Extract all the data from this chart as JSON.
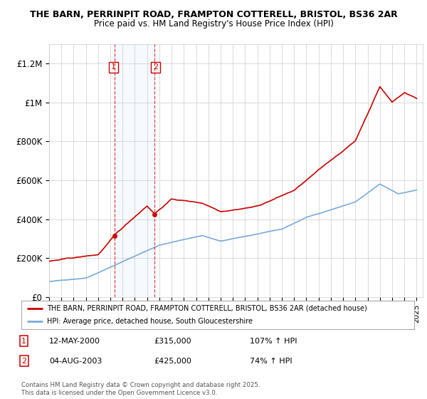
{
  "title_line1": "THE BARN, PERRINPIT ROAD, FRAMPTON COTTERELL, BRISTOL, BS36 2AR",
  "title_line2": "Price paid vs. HM Land Registry's House Price Index (HPI)",
  "hpi_color": "#7aaadc",
  "property_color": "#cc0000",
  "marker_color": "#cc0000",
  "background_color": "#ffffff",
  "grid_color": "#cccccc",
  "ylim": [
    0,
    1300000
  ],
  "yticks": [
    0,
    200000,
    400000,
    600000,
    800000,
    1000000,
    1200000
  ],
  "ytick_labels": [
    "£0",
    "£200K",
    "£400K",
    "£600K",
    "£800K",
    "£1M",
    "£1.2M"
  ],
  "purchase1_date": 2000.37,
  "purchase1_price": 315000,
  "purchase2_date": 2003.59,
  "purchase2_price": 425000,
  "legend_line1": "THE BARN, PERRINPIT ROAD, FRAMPTON COTTERELL, BRISTOL, BS36 2AR (detached house)",
  "legend_line2": "HPI: Average price, detached house, South Gloucestershire",
  "footnote": "Contains HM Land Registry data © Crown copyright and database right 2025.\nThis data is licensed under the Open Government Licence v3.0.",
  "xmin": 1995,
  "xmax": 2025.5
}
